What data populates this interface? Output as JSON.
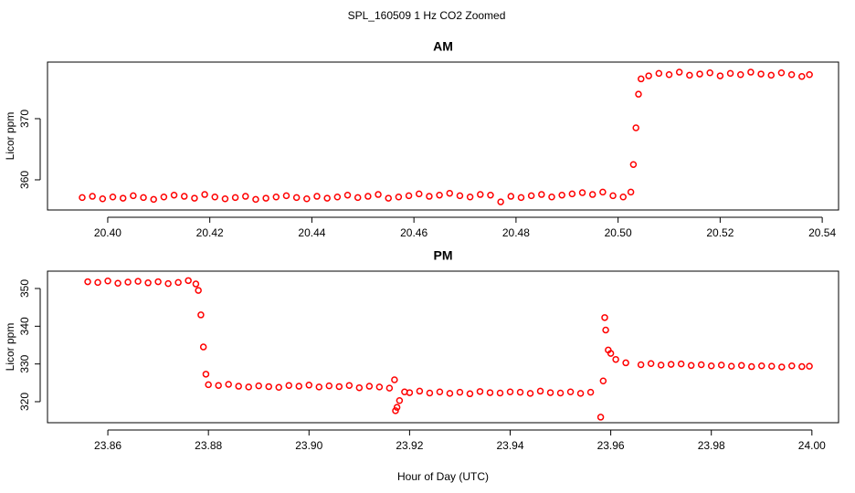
{
  "title": "SPL_160509  1 Hz CO2 Zoomed",
  "chart_data": [
    {
      "type": "scatter",
      "title": "AM",
      "ylabel": "Licor ppm",
      "color": "#ff0000",
      "xlim": [
        20.3882,
        20.5432
      ],
      "ylim": [
        355.07,
        379.25
      ],
      "xticks": [
        {
          "value": 20.4,
          "label": "20.40"
        },
        20.42,
        20.44,
        20.46,
        20.48,
        {
          "value": 20.5,
          "label": "20.50"
        },
        20.52,
        20.54
      ],
      "yticks": [
        360,
        370
      ],
      "x": [
        20.395,
        20.397,
        20.399,
        20.401,
        20.403,
        20.405,
        20.407,
        20.409,
        20.411,
        20.413,
        20.415,
        20.417,
        20.419,
        20.421,
        20.423,
        20.425,
        20.427,
        20.429,
        20.431,
        20.433,
        20.435,
        20.437,
        20.439,
        20.441,
        20.443,
        20.445,
        20.447,
        20.449,
        20.451,
        20.453,
        20.455,
        20.457,
        20.459,
        20.461,
        20.463,
        20.465,
        20.467,
        20.469,
        20.471,
        20.473,
        20.475,
        20.477,
        20.479,
        20.481,
        20.483,
        20.485,
        20.487,
        20.489,
        20.491,
        20.493,
        20.495,
        20.497,
        20.499,
        20.501,
        20.5025,
        20.503,
        20.5035,
        20.504,
        20.5045,
        20.506,
        20.508,
        20.51,
        20.512,
        20.514,
        20.516,
        20.518,
        20.52,
        20.522,
        20.524,
        20.526,
        20.528,
        20.53,
        20.532,
        20.534,
        20.536,
        20.5375
      ],
      "values": [
        357.1,
        357.3,
        356.9,
        357.2,
        357.0,
        357.4,
        357.1,
        356.8,
        357.2,
        357.5,
        357.3,
        357.0,
        357.6,
        357.2,
        356.9,
        357.1,
        357.3,
        356.8,
        357.0,
        357.2,
        357.4,
        357.1,
        356.9,
        357.3,
        357.0,
        357.2,
        357.5,
        357.1,
        357.3,
        357.6,
        357.0,
        357.2,
        357.4,
        357.7,
        357.3,
        357.5,
        357.8,
        357.4,
        357.2,
        357.6,
        357.5,
        356.4,
        357.3,
        357.1,
        357.4,
        357.6,
        357.2,
        357.5,
        357.7,
        357.9,
        357.6,
        358.0,
        357.4,
        357.2,
        358.0,
        362.5,
        368.5,
        374.0,
        376.5,
        377.0,
        377.4,
        377.2,
        377.6,
        377.1,
        377.3,
        377.5,
        377.0,
        377.4,
        377.2,
        377.6,
        377.3,
        377.1,
        377.5,
        377.2,
        376.9,
        377.2
      ]
    },
    {
      "type": "scatter",
      "title": "PM",
      "ylabel": "Licor ppm",
      "xlabel": "Hour of Day (UTC)",
      "color": "#ff0000",
      "xlim": [
        23.848,
        24.0053
      ],
      "ylim": [
        314.43,
        354.6
      ],
      "xticks": [
        23.86,
        23.88,
        {
          "value": 23.9,
          "label": "23.90"
        },
        23.92,
        23.94,
        23.96,
        23.98,
        {
          "value": 24.0,
          "label": "24.00"
        }
      ],
      "yticks": [
        320,
        330,
        340,
        350
      ],
      "x": [
        23.856,
        23.858,
        23.86,
        23.862,
        23.864,
        23.866,
        23.868,
        23.87,
        23.872,
        23.874,
        23.876,
        23.8775,
        23.878,
        23.8785,
        23.879,
        23.8795,
        23.88,
        23.882,
        23.884,
        23.886,
        23.888,
        23.89,
        23.892,
        23.894,
        23.896,
        23.898,
        23.9,
        23.902,
        23.904,
        23.906,
        23.908,
        23.91,
        23.912,
        23.914,
        23.916,
        23.917,
        23.9172,
        23.9175,
        23.918,
        23.919,
        23.92,
        23.922,
        23.924,
        23.926,
        23.928,
        23.93,
        23.932,
        23.934,
        23.936,
        23.938,
        23.94,
        23.942,
        23.944,
        23.946,
        23.948,
        23.95,
        23.952,
        23.954,
        23.956,
        23.958,
        23.9585,
        23.9588,
        23.959,
        23.9595,
        23.96,
        23.961,
        23.963,
        23.966,
        23.968,
        23.97,
        23.972,
        23.974,
        23.976,
        23.978,
        23.98,
        23.982,
        23.984,
        23.986,
        23.988,
        23.99,
        23.992,
        23.994,
        23.996,
        23.998,
        23.9995
      ],
      "values": [
        351.8,
        351.6,
        352.0,
        351.4,
        351.7,
        351.9,
        351.5,
        351.8,
        351.3,
        351.6,
        352.1,
        351.2,
        349.5,
        343.0,
        334.5,
        327.3,
        324.5,
        324.3,
        324.6,
        324.1,
        323.9,
        324.2,
        324.0,
        323.8,
        324.3,
        324.1,
        324.4,
        323.9,
        324.2,
        324.0,
        324.3,
        323.7,
        324.1,
        323.9,
        323.6,
        325.8,
        317.6,
        318.5,
        320.3,
        322.6,
        322.4,
        322.8,
        322.3,
        322.6,
        322.2,
        322.5,
        322.1,
        322.7,
        322.4,
        322.3,
        322.6,
        322.5,
        322.2,
        322.8,
        322.4,
        322.3,
        322.6,
        322.2,
        322.5,
        315.9,
        325.5,
        342.3,
        339.0,
        333.7,
        332.8,
        331.2,
        330.3,
        329.8,
        330.1,
        329.7,
        329.9,
        330.0,
        329.6,
        329.8,
        329.5,
        329.7,
        329.4,
        329.6,
        329.3,
        329.5,
        329.4,
        329.2,
        329.5,
        329.3,
        329.4
      ]
    }
  ]
}
